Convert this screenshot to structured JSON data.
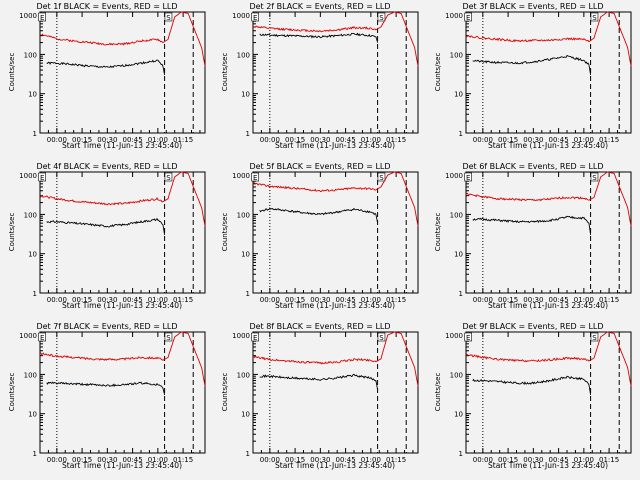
{
  "style": {
    "background": "#f2f2f2",
    "events_color": "#000000",
    "lld_color": "#dd0000",
    "axis_color": "#000000"
  },
  "shared": {
    "xlabel": "Start Time (11-Jun-13 23:45:40)",
    "ylabel": "Counts/sec",
    "x_ticks": [
      "00:00",
      "00:15",
      "00:30",
      "00:45",
      "01:00",
      "01:15"
    ],
    "y_ticks": [
      "1",
      "10",
      "100",
      "1000"
    ],
    "ylim": [
      1,
      1200
    ],
    "y_scale": "log",
    "x_range_min": [
      -10,
      88
    ],
    "markers": [
      {
        "label": "",
        "x_min": 0,
        "style": "dotted"
      },
      {
        "label": "",
        "x_min": 64,
        "style": "dashed"
      },
      {
        "label": "",
        "x_min": 81,
        "style": "dashed"
      },
      {
        "label": "E",
        "x_min": -9,
        "style": "box"
      },
      {
        "label": "S",
        "x_min": 66,
        "style": "box"
      }
    ]
  },
  "chart_data": [
    {
      "type": "line",
      "title": "Det 1f BLACK = Events, RED = LLD",
      "series": [
        {
          "name": "Events",
          "x": [
            -6,
            0,
            10,
            20,
            30,
            40,
            50,
            60,
            63,
            64
          ],
          "values": [
            60,
            60,
            55,
            50,
            47,
            52,
            60,
            70,
            50,
            30
          ]
        },
        {
          "name": "LLD",
          "x": [
            -10,
            0,
            10,
            20,
            30,
            40,
            50,
            60,
            63,
            66,
            70,
            74,
            78,
            82,
            86,
            88
          ],
          "values": [
            330,
            250,
            220,
            200,
            180,
            185,
            220,
            240,
            200,
            240,
            900,
            1200,
            1100,
            400,
            150,
            50
          ]
        }
      ]
    },
    {
      "type": "line",
      "title": "Det 2f BLACK = Events, RED = LLD",
      "series": [
        {
          "name": "Events",
          "x": [
            -6,
            0,
            10,
            20,
            30,
            40,
            50,
            60,
            63,
            64
          ],
          "values": [
            320,
            310,
            300,
            290,
            280,
            300,
            330,
            300,
            280,
            200
          ]
        },
        {
          "name": "LLD",
          "x": [
            -10,
            0,
            10,
            20,
            30,
            40,
            50,
            60,
            63,
            66,
            70,
            74,
            78,
            82,
            86,
            88
          ],
          "values": [
            520,
            460,
            430,
            410,
            390,
            420,
            480,
            460,
            420,
            500,
            1000,
            1200,
            1100,
            400,
            150,
            50
          ]
        }
      ]
    },
    {
      "type": "line",
      "title": "Det 3f BLACK = Events, RED = LLD",
      "series": [
        {
          "name": "Events",
          "x": [
            -6,
            0,
            10,
            20,
            30,
            40,
            50,
            60,
            63,
            64
          ],
          "values": [
            70,
            65,
            62,
            60,
            65,
            75,
            90,
            70,
            55,
            30
          ]
        },
        {
          "name": "LLD",
          "x": [
            -10,
            0,
            10,
            20,
            30,
            40,
            50,
            60,
            63,
            66,
            70,
            74,
            78,
            82,
            86,
            88
          ],
          "values": [
            300,
            260,
            240,
            220,
            225,
            230,
            250,
            240,
            210,
            260,
            900,
            1200,
            1100,
            400,
            150,
            50
          ]
        }
      ]
    },
    {
      "type": "line",
      "title": "Det 4f BLACK = Events, RED = LLD",
      "series": [
        {
          "name": "Events",
          "x": [
            -6,
            0,
            10,
            20,
            30,
            40,
            50,
            60,
            63,
            64
          ],
          "values": [
            65,
            65,
            60,
            55,
            50,
            55,
            65,
            75,
            55,
            30
          ]
        },
        {
          "name": "LLD",
          "x": [
            -10,
            0,
            10,
            20,
            30,
            40,
            50,
            60,
            63,
            66,
            70,
            74,
            78,
            82,
            86,
            88
          ],
          "values": [
            300,
            250,
            220,
            200,
            185,
            190,
            220,
            250,
            210,
            250,
            900,
            1200,
            1100,
            400,
            150,
            50
          ]
        }
      ]
    },
    {
      "type": "line",
      "title": "Det 5f BLACK = Events, RED = LLD",
      "series": [
        {
          "name": "Events",
          "x": [
            -6,
            0,
            10,
            20,
            30,
            40,
            50,
            60,
            63,
            64
          ],
          "values": [
            120,
            140,
            125,
            110,
            100,
            115,
            135,
            115,
            100,
            60
          ]
        },
        {
          "name": "LLD",
          "x": [
            -10,
            0,
            10,
            20,
            30,
            40,
            50,
            60,
            63,
            66,
            70,
            74,
            78,
            82,
            86,
            88
          ],
          "values": [
            620,
            520,
            480,
            440,
            400,
            420,
            470,
            450,
            420,
            500,
            1000,
            1200,
            1100,
            400,
            150,
            50
          ]
        }
      ]
    },
    {
      "type": "line",
      "title": "Det 6f BLACK = Events, RED = LLD",
      "series": [
        {
          "name": "Events",
          "x": [
            -6,
            0,
            10,
            20,
            30,
            40,
            50,
            60,
            63,
            64
          ],
          "values": [
            75,
            75,
            70,
            65,
            65,
            70,
            85,
            80,
            60,
            30
          ]
        },
        {
          "name": "LLD",
          "x": [
            -10,
            0,
            10,
            20,
            30,
            40,
            50,
            60,
            63,
            66,
            70,
            74,
            78,
            82,
            86,
            88
          ],
          "values": [
            330,
            280,
            250,
            240,
            230,
            245,
            270,
            260,
            230,
            270,
            900,
            1200,
            1100,
            400,
            150,
            50
          ]
        }
      ]
    },
    {
      "type": "line",
      "title": "Det 7f BLACK = Events, RED = LLD",
      "series": [
        {
          "name": "Events",
          "x": [
            -6,
            0,
            10,
            20,
            30,
            40,
            50,
            60,
            63,
            64
          ],
          "values": [
            60,
            60,
            57,
            55,
            52,
            55,
            60,
            55,
            45,
            30
          ]
        },
        {
          "name": "LLD",
          "x": [
            -10,
            0,
            10,
            20,
            30,
            40,
            50,
            60,
            63,
            66,
            70,
            74,
            78,
            82,
            86,
            88
          ],
          "values": [
            340,
            290,
            270,
            250,
            240,
            245,
            270,
            260,
            230,
            270,
            900,
            1200,
            1100,
            400,
            150,
            50
          ]
        }
      ]
    },
    {
      "type": "line",
      "title": "Det 8f BLACK = Events, RED = LLD",
      "series": [
        {
          "name": "Events",
          "x": [
            -6,
            0,
            10,
            20,
            30,
            40,
            50,
            60,
            63,
            64
          ],
          "values": [
            90,
            90,
            82,
            78,
            74,
            82,
            95,
            80,
            70,
            40
          ]
        },
        {
          "name": "LLD",
          "x": [
            -10,
            0,
            10,
            20,
            30,
            40,
            50,
            60,
            63,
            66,
            70,
            74,
            78,
            82,
            86,
            88
          ],
          "values": [
            280,
            240,
            220,
            205,
            195,
            205,
            240,
            230,
            210,
            250,
            1000,
            1200,
            1100,
            400,
            150,
            50
          ]
        }
      ]
    },
    {
      "type": "line",
      "title": "Det 9f BLACK = Events, RED = LLD",
      "series": [
        {
          "name": "Events",
          "x": [
            -6,
            0,
            10,
            20,
            30,
            40,
            50,
            60,
            63,
            64
          ],
          "values": [
            70,
            70,
            65,
            60,
            60,
            70,
            85,
            75,
            55,
            30
          ]
        },
        {
          "name": "LLD",
          "x": [
            -10,
            0,
            10,
            20,
            30,
            40,
            50,
            60,
            63,
            66,
            70,
            74,
            78,
            82,
            86,
            88
          ],
          "values": [
            320,
            270,
            240,
            225,
            220,
            235,
            260,
            250,
            220,
            260,
            900,
            1200,
            1100,
            400,
            150,
            50
          ]
        }
      ]
    }
  ]
}
